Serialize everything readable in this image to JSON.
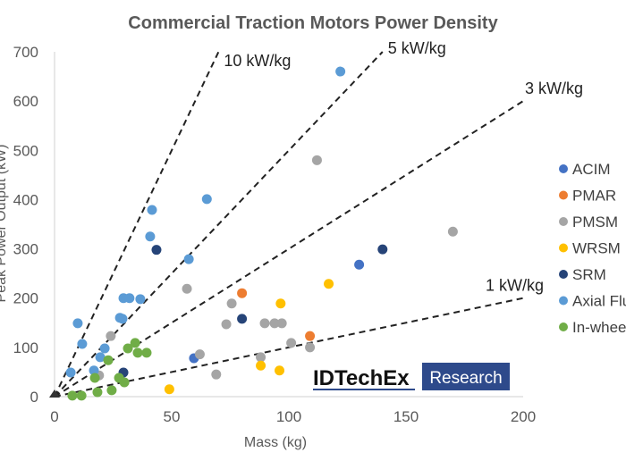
{
  "chart_data": {
    "type": "scatter",
    "title": "Commercial Traction Motors Power Density",
    "xlabel": "Mass (kg)",
    "ylabel": "Peak Power Output (kW)",
    "xlim": [
      0,
      200
    ],
    "ylim": [
      0,
      700
    ],
    "xticks": [
      "0",
      "50",
      "100",
      "150",
      "200"
    ],
    "yticks": [
      "0",
      "100",
      "200",
      "300",
      "400",
      "500",
      "600",
      "700"
    ],
    "grid": false,
    "legend_position": "right",
    "reference_lines": [
      {
        "label": "10 kW/kg",
        "slope": 10
      },
      {
        "label": "5 kW/kg",
        "slope": 5
      },
      {
        "label": "3 kW/kg",
        "slope": 3
      },
      {
        "label": "1 kW/kg",
        "slope": 1
      }
    ],
    "series": [
      {
        "name": "ACIM",
        "color": "#4472C4",
        "points": [
          [
            59.5,
            78
          ],
          [
            130,
            268
          ]
        ]
      },
      {
        "name": "PMAR",
        "color": "#ED7D31",
        "points": [
          [
            80,
            210
          ],
          [
            109,
            123
          ]
        ]
      },
      {
        "name": "PMSM",
        "color": "#A5A5A5",
        "points": [
          [
            24,
            123
          ],
          [
            19,
            43
          ],
          [
            56.5,
            219
          ],
          [
            62,
            86
          ],
          [
            69,
            45
          ],
          [
            75.6,
            189
          ],
          [
            73.3,
            147
          ],
          [
            89.7,
            149
          ],
          [
            93.9,
            149
          ],
          [
            97,
            149
          ],
          [
            101,
            109
          ],
          [
            88,
            80
          ],
          [
            109,
            100
          ],
          [
            112,
            480
          ],
          [
            170,
            335
          ]
        ]
      },
      {
        "name": "WRSM",
        "color": "#FFC000",
        "points": [
          [
            49,
            15
          ],
          [
            88,
            63
          ],
          [
            96,
            53
          ],
          [
            96.5,
            189
          ],
          [
            117,
            229
          ]
        ]
      },
      {
        "name": "SRM",
        "color": "#264478",
        "points": [
          [
            43.5,
            298
          ],
          [
            29.4,
            49
          ],
          [
            80,
            158
          ],
          [
            140,
            299
          ]
        ]
      },
      {
        "name": "Axial Flux",
        "color": "#5B9BD5",
        "points": [
          [
            6.9,
            49
          ],
          [
            9.9,
            149
          ],
          [
            11.8,
            107
          ],
          [
            21.4,
            98
          ],
          [
            19.5,
            80
          ],
          [
            16.8,
            53
          ],
          [
            27.9,
            160
          ],
          [
            29,
            158
          ],
          [
            29.4,
            200
          ],
          [
            32,
            200
          ],
          [
            36.6,
            198
          ],
          [
            40.8,
            325
          ],
          [
            41.6,
            379
          ],
          [
            57.3,
            279
          ],
          [
            65,
            401
          ],
          [
            122,
            660
          ]
        ]
      },
      {
        "name": "In-wheel",
        "color": "#70AD47",
        "points": [
          [
            7.6,
            2
          ],
          [
            11.5,
            2
          ],
          [
            18.3,
            9
          ],
          [
            24.4,
            13
          ],
          [
            17.2,
            38
          ],
          [
            22.9,
            74
          ],
          [
            27.5,
            38
          ],
          [
            29.8,
            29
          ],
          [
            31.3,
            98
          ],
          [
            34.4,
            109
          ],
          [
            35.5,
            89
          ],
          [
            39.3,
            89
          ]
        ]
      }
    ]
  },
  "logo": {
    "brand": "IDTechEx",
    "tag": "Research",
    "tag_bg": "#2E4A8B"
  }
}
